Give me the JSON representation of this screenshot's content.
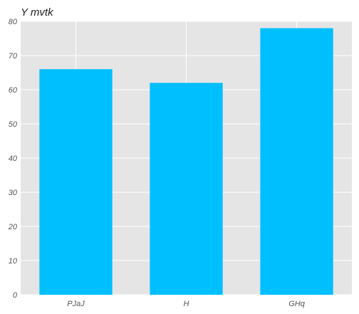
{
  "chart_data": {
    "type": "bar",
    "title": "Y mvtk",
    "xlabel": "",
    "ylabel": "",
    "categories": [
      "PJaJ",
      "H",
      "GHq"
    ],
    "values": [
      66,
      62,
      78
    ],
    "ylim": [
      0,
      80
    ],
    "yticks": [
      "0",
      "10",
      "20",
      "30",
      "40",
      "50",
      "60",
      "70",
      "80"
    ],
    "grid": true,
    "legend": "none",
    "colors": {
      "bar": "#00bfff",
      "plot_background": "#e5e5e5",
      "grid": "#ffffff"
    }
  }
}
